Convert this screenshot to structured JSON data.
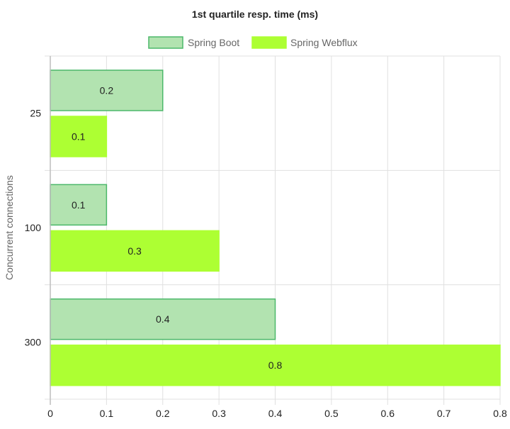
{
  "chart_data": {
    "type": "bar",
    "orientation": "horizontal",
    "title": "1st quartile resp. time (ms)",
    "xlabel": "",
    "ylabel": "Concurrent connections",
    "categories": [
      "25",
      "100",
      "300"
    ],
    "series": [
      {
        "name": "Spring Boot",
        "values": [
          0.2,
          0.1,
          0.4
        ],
        "fill": "#b2e3b0",
        "stroke": "#4cb86a"
      },
      {
        "name": "Spring Webflux",
        "values": [
          0.1,
          0.3,
          0.8
        ],
        "fill": "#adff33",
        "stroke": "#adff33"
      }
    ],
    "xlim": [
      0,
      0.8
    ],
    "xticks": [
      "0",
      "0.1",
      "0.2",
      "0.3",
      "0.4",
      "0.5",
      "0.6",
      "0.7",
      "0.8"
    ],
    "legend_position": "top",
    "grid": true
  }
}
